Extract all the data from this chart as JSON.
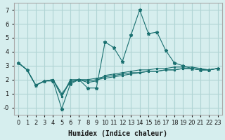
{
  "xlabel": "Humidex (Indice chaleur)",
  "ylabel": "",
  "xlim": [
    -0.5,
    23.5
  ],
  "ylim": [
    -0.5,
    7.5
  ],
  "xticks": [
    0,
    1,
    2,
    3,
    4,
    5,
    6,
    7,
    8,
    9,
    10,
    11,
    12,
    13,
    14,
    15,
    16,
    17,
    18,
    19,
    20,
    21,
    22,
    23
  ],
  "yticks": [
    0,
    1,
    2,
    3,
    4,
    5,
    6,
    7
  ],
  "ytick_labels": [
    "-0",
    "1",
    "2",
    "3",
    "4",
    "5",
    "6",
    "7"
  ],
  "bg_color": "#d6eeee",
  "grid_color": "#b0d4d4",
  "line_color": "#1a7070",
  "lines": [
    [
      0,
      3.2,
      1,
      2.7,
      2,
      1.6,
      3,
      1.9,
      4,
      1.9,
      5,
      -0.1,
      6,
      1.7,
      7,
      2.0,
      8,
      1.4,
      9,
      1.4,
      10,
      4.7,
      11,
      4.3,
      12,
      3.3,
      13,
      5.2,
      14,
      7.0,
      15,
      5.3,
      16,
      5.4,
      17,
      4.1,
      18,
      3.2,
      19,
      3.0,
      20,
      2.8,
      21,
      2.7,
      22,
      2.7,
      23,
      2.8
    ],
    [
      0,
      3.2,
      1,
      2.7,
      2,
      1.6,
      3,
      1.9,
      4,
      2.0,
      5,
      0.8,
      6,
      2.0,
      7,
      2.0,
      8,
      1.8,
      9,
      1.9,
      10,
      2.3,
      11,
      2.4,
      12,
      2.5,
      13,
      2.6,
      14,
      2.7,
      15,
      2.7,
      16,
      2.8,
      17,
      2.8,
      18,
      2.9,
      19,
      2.9,
      20,
      2.9,
      21,
      2.8,
      22,
      2.7,
      23,
      2.8
    ],
    [
      0,
      3.2,
      1,
      2.7,
      2,
      1.6,
      3,
      1.9,
      4,
      2.0,
      5,
      0.8,
      6,
      1.9,
      7,
      2.0,
      8,
      1.9,
      9,
      2.0,
      10,
      2.1,
      11,
      2.2,
      12,
      2.3,
      13,
      2.4,
      14,
      2.5,
      15,
      2.6,
      16,
      2.6,
      17,
      2.7,
      18,
      2.7,
      19,
      2.8,
      20,
      2.8,
      21,
      2.7,
      22,
      2.7,
      23,
      2.8
    ],
    [
      0,
      3.2,
      1,
      2.7,
      2,
      1.6,
      3,
      1.9,
      4,
      2.0,
      5,
      1.0,
      6,
      1.8,
      7,
      2.0,
      8,
      2.0,
      9,
      2.1,
      10,
      2.2,
      11,
      2.3,
      12,
      2.4,
      13,
      2.5,
      14,
      2.5,
      15,
      2.6,
      16,
      2.6,
      17,
      2.7,
      18,
      2.7,
      19,
      2.8,
      20,
      2.8,
      21,
      2.7,
      22,
      2.7,
      23,
      2.8
    ]
  ]
}
